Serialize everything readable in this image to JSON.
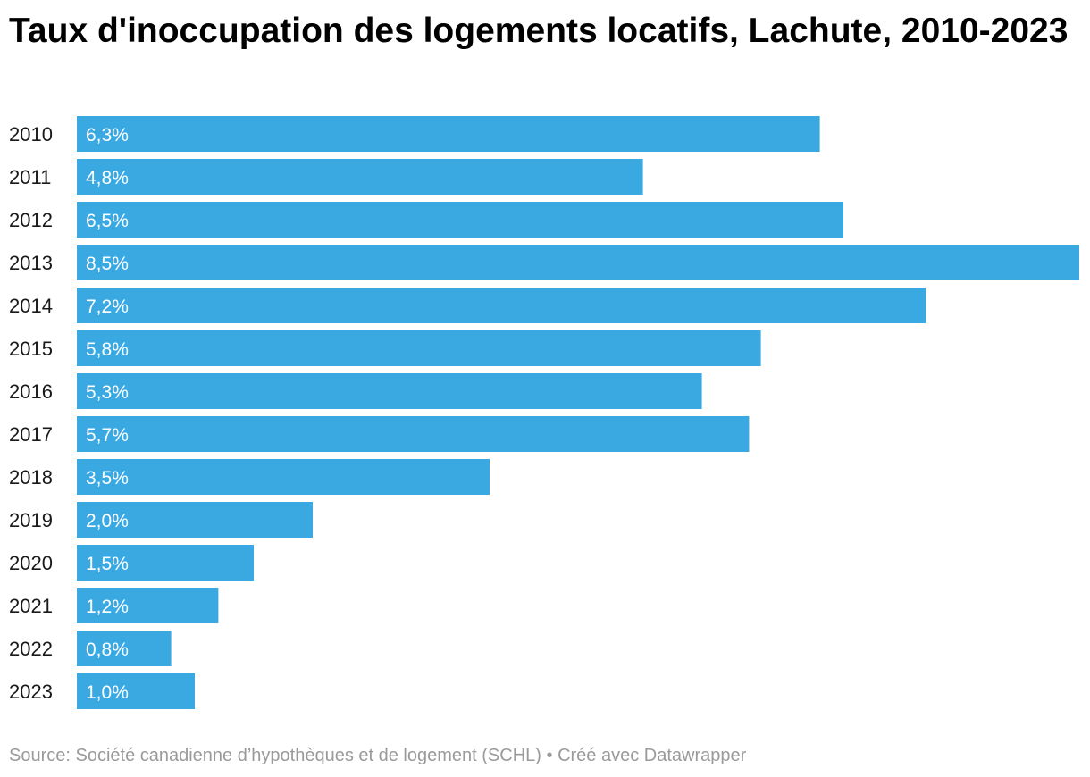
{
  "chart_data": {
    "type": "bar",
    "orientation": "horizontal",
    "title": "Taux d'inoccupation des logements locatifs, Lachute, 2010-2023",
    "categories": [
      "2010",
      "2011",
      "2012",
      "2013",
      "2014",
      "2015",
      "2016",
      "2017",
      "2018",
      "2019",
      "2020",
      "2021",
      "2022",
      "2023"
    ],
    "values": [
      6.3,
      4.8,
      6.5,
      8.5,
      7.2,
      5.8,
      5.3,
      5.7,
      3.5,
      2.0,
      1.5,
      1.2,
      0.8,
      1.0
    ],
    "value_labels": [
      "6,3%",
      "4,8%",
      "6,5%",
      "8,5%",
      "7,2%",
      "5,8%",
      "5,3%",
      "5,7%",
      "3,5%",
      "2,0%",
      "1,5%",
      "1,2%",
      "0,8%",
      "1,0%"
    ],
    "xlabel": "",
    "ylabel": "",
    "xlim": [
      0,
      8.5
    ],
    "grid": false,
    "legend": "none",
    "bar_color": "#3aa9e1",
    "label_color": "#ffffff"
  },
  "footer": {
    "source": "Source: Société canadienne d’hypothèques et de logement (SCHL)",
    "separator": "•",
    "credit": "Créé avec Datawrapper"
  }
}
